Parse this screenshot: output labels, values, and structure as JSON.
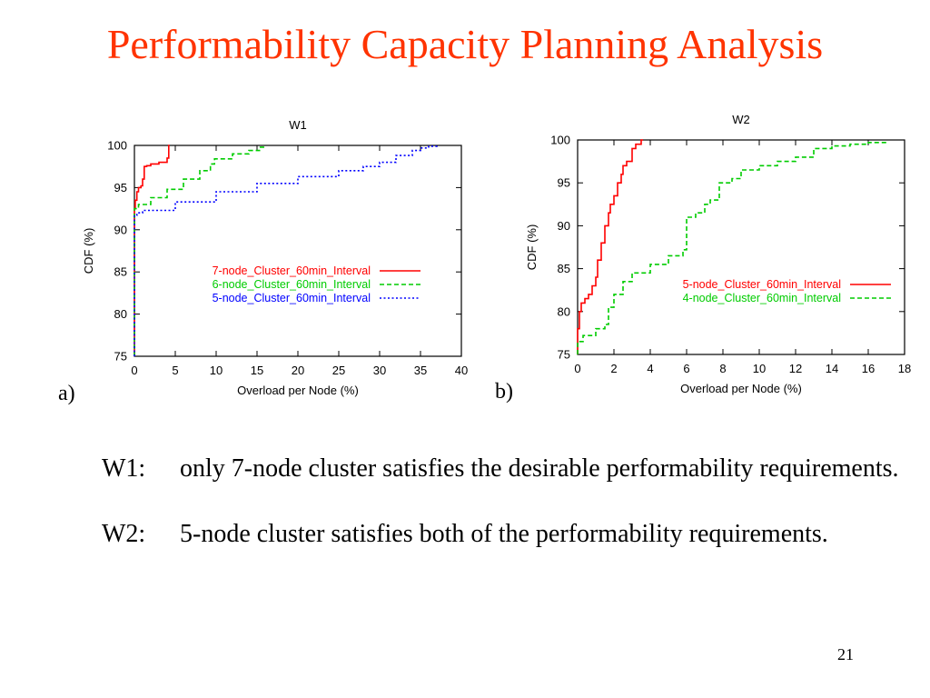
{
  "slide": {
    "title": "Performability Capacity Planning Analysis",
    "page_number": "21",
    "panel_labels": [
      "a)",
      "b)"
    ],
    "bullets": [
      {
        "tag": "W1:",
        "text": "only 7-node cluster satisfies the desirable performability requirements."
      },
      {
        "tag": "W2:",
        "text": "5-node cluster satisfies both of  the  performability requirements."
      }
    ]
  },
  "chart_data": [
    {
      "type": "line",
      "title": "W1",
      "xlabel": "Overload per Node  (%)",
      "ylabel": "CDF (%)",
      "xlim": [
        0,
        40
      ],
      "ylim": [
        75,
        100
      ],
      "xticks": [
        "0",
        "5",
        "10",
        "15",
        "20",
        "25",
        "30",
        "35",
        "40"
      ],
      "yticks": [
        "75",
        "80",
        "85",
        "90",
        "95",
        "100"
      ],
      "legend_position": "center-right",
      "series": [
        {
          "name": "7-node_Cluster_60min_Interval",
          "color": "#ff0000",
          "style": "solid",
          "x": [
            0,
            0,
            0.1,
            0.3,
            0.5,
            0.8,
            1.0,
            1.2,
            1.5,
            2.0,
            3.0,
            4.0,
            4.2,
            4.3
          ],
          "y": [
            75,
            92.5,
            93.5,
            94.5,
            95,
            95.2,
            96,
            97.5,
            97.6,
            97.8,
            98,
            98.5,
            100,
            100
          ]
        },
        {
          "name": "6-node_Cluster_60min_Interval",
          "color": "#00cc00",
          "style": "dashed",
          "x": [
            0,
            0,
            0.5,
            2,
            4,
            6,
            8,
            9.3,
            9.8,
            12,
            14,
            15.3,
            15.8
          ],
          "y": [
            75,
            92.5,
            93,
            93.8,
            94.8,
            96,
            97,
            97.8,
            98.4,
            99,
            99.4,
            99.8,
            100
          ]
        },
        {
          "name": "5-node_Cluster_60min_Interval",
          "color": "#0000ff",
          "style": "dotted",
          "x": [
            0,
            0,
            0.3,
            1,
            5,
            10,
            15,
            20,
            25,
            28,
            30,
            32,
            34,
            35,
            36,
            37
          ],
          "y": [
            75,
            91.7,
            92,
            92.3,
            93.3,
            94.5,
            95.5,
            96.3,
            97,
            97.5,
            98,
            98.8,
            99.4,
            99.7,
            99.9,
            100
          ]
        }
      ]
    },
    {
      "type": "line",
      "title": "W2",
      "xlabel": "Overload per Node  (%)",
      "ylabel": "CDF (%)",
      "xlim": [
        0,
        18
      ],
      "ylim": [
        75,
        100
      ],
      "xticks": [
        "0",
        "2",
        "4",
        "6",
        "8",
        "10",
        "12",
        "14",
        "16",
        "18"
      ],
      "yticks": [
        "75",
        "80",
        "85",
        "90",
        "95",
        "100"
      ],
      "legend_position": "center-right",
      "series": [
        {
          "name": "5-node_Cluster_60min_Interval",
          "color": "#ff0000",
          "style": "solid",
          "x": [
            0,
            0,
            0.1,
            0.2,
            0.4,
            0.6,
            0.8,
            1.0,
            1.1,
            1.3,
            1.5,
            1.7,
            1.8,
            2.0,
            2.2,
            2.4,
            2.5,
            2.7,
            3.0,
            3.2,
            3.5,
            3.6
          ],
          "y": [
            75,
            78,
            80,
            81,
            81.5,
            82,
            83,
            84,
            86,
            88,
            90,
            91.5,
            92.5,
            93.5,
            95,
            96,
            97,
            97.5,
            99,
            99.5,
            100,
            100
          ]
        },
        {
          "name": "4-node_Cluster_60min_Interval",
          "color": "#00cc00",
          "style": "dashed",
          "x": [
            0,
            0,
            0.3,
            1.0,
            1.5,
            1.7,
            2.0,
            2.5,
            3.0,
            4.0,
            5.0,
            5.8,
            6.0,
            6.5,
            7.0,
            7.3,
            7.8,
            8.5,
            9.0,
            10.0,
            11.0,
            12.0,
            13.0,
            14.0,
            15.0,
            16.0,
            17.0
          ],
          "y": [
            75,
            76.5,
            77.2,
            78,
            78.5,
            80.5,
            82,
            83.5,
            84.5,
            85.5,
            86.5,
            87.2,
            91,
            91.5,
            92.5,
            93,
            95,
            95.5,
            96.5,
            97,
            97.5,
            98,
            99,
            99.3,
            99.5,
            99.7,
            100
          ]
        }
      ]
    }
  ]
}
